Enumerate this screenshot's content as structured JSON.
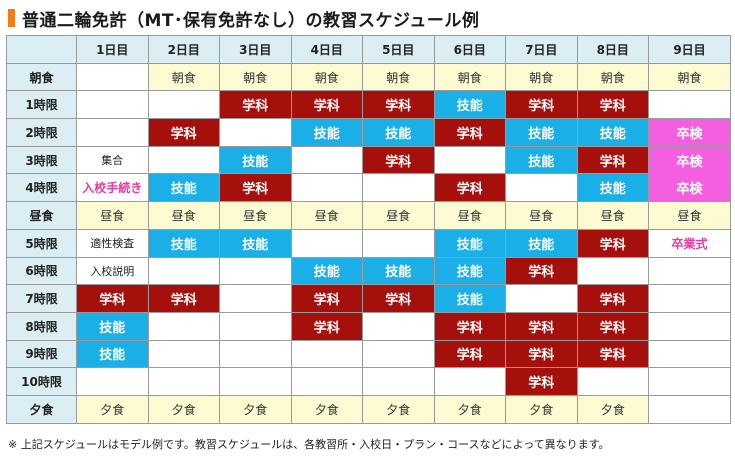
{
  "title": "普通二輪免許（MT･保有免許なし）の教習スケジュール例",
  "days": [
    "1日目",
    "2日目",
    "3日目",
    "4日目",
    "5日目",
    "6日目",
    "7日目",
    "8日目",
    "9日目"
  ],
  "rows": [
    {
      "label": "朝食",
      "cells": [
        {
          "t": "empty",
          "v": ""
        },
        {
          "t": "meal",
          "v": "朝食"
        },
        {
          "t": "meal",
          "v": "朝食"
        },
        {
          "t": "meal",
          "v": "朝食"
        },
        {
          "t": "meal",
          "v": "朝食"
        },
        {
          "t": "meal",
          "v": "朝食"
        },
        {
          "t": "meal",
          "v": "朝食"
        },
        {
          "t": "meal",
          "v": "朝食"
        },
        {
          "t": "meal",
          "v": "朝食"
        }
      ]
    },
    {
      "label": "1時限",
      "cells": [
        {
          "t": "empty",
          "v": ""
        },
        {
          "t": "empty",
          "v": ""
        },
        {
          "t": "gakka",
          "v": "学科"
        },
        {
          "t": "gakka",
          "v": "学科"
        },
        {
          "t": "gakka",
          "v": "学科"
        },
        {
          "t": "gino",
          "v": "技能"
        },
        {
          "t": "gakka",
          "v": "学科"
        },
        {
          "t": "gakka",
          "v": "学科"
        },
        {
          "t": "empty",
          "v": ""
        }
      ]
    },
    {
      "label": "2時限",
      "cells": [
        {
          "t": "empty",
          "v": ""
        },
        {
          "t": "gakka",
          "v": "学科"
        },
        {
          "t": "empty",
          "v": ""
        },
        {
          "t": "gino",
          "v": "技能"
        },
        {
          "t": "gino",
          "v": "技能"
        },
        {
          "t": "gakka",
          "v": "学科"
        },
        {
          "t": "gino",
          "v": "技能"
        },
        {
          "t": "gino",
          "v": "技能"
        },
        {
          "t": "sotsu",
          "v": "卒検"
        }
      ]
    },
    {
      "label": "3時限",
      "cells": [
        {
          "t": "plain",
          "v": "集合"
        },
        {
          "t": "empty",
          "v": ""
        },
        {
          "t": "gino",
          "v": "技能"
        },
        {
          "t": "empty",
          "v": ""
        },
        {
          "t": "gakka",
          "v": "学科"
        },
        {
          "t": "empty",
          "v": ""
        },
        {
          "t": "gino",
          "v": "技能"
        },
        {
          "t": "gakka",
          "v": "学科"
        },
        {
          "t": "sotsu",
          "v": "卒検"
        }
      ]
    },
    {
      "label": "4時限",
      "cells": [
        {
          "t": "pink",
          "v": "入校手続き"
        },
        {
          "t": "gino",
          "v": "技能"
        },
        {
          "t": "gakka",
          "v": "学科"
        },
        {
          "t": "empty",
          "v": ""
        },
        {
          "t": "empty",
          "v": ""
        },
        {
          "t": "gakka",
          "v": "学科"
        },
        {
          "t": "empty",
          "v": ""
        },
        {
          "t": "gino",
          "v": "技能"
        },
        {
          "t": "sotsu",
          "v": "卒検"
        }
      ]
    },
    {
      "label": "昼食",
      "cells": [
        {
          "t": "meal",
          "v": "昼食"
        },
        {
          "t": "meal",
          "v": "昼食"
        },
        {
          "t": "meal",
          "v": "昼食"
        },
        {
          "t": "meal",
          "v": "昼食"
        },
        {
          "t": "meal",
          "v": "昼食"
        },
        {
          "t": "meal",
          "v": "昼食"
        },
        {
          "t": "meal",
          "v": "昼食"
        },
        {
          "t": "meal",
          "v": "昼食"
        },
        {
          "t": "meal",
          "v": "昼食"
        }
      ]
    },
    {
      "label": "5時限",
      "cells": [
        {
          "t": "plain",
          "v": "適性検査"
        },
        {
          "t": "gino",
          "v": "技能"
        },
        {
          "t": "gino",
          "v": "技能"
        },
        {
          "t": "empty",
          "v": ""
        },
        {
          "t": "empty",
          "v": ""
        },
        {
          "t": "gino",
          "v": "技能"
        },
        {
          "t": "gino",
          "v": "技能"
        },
        {
          "t": "gakka",
          "v": "学科"
        },
        {
          "t": "pink",
          "v": "卒業式"
        }
      ]
    },
    {
      "label": "6時限",
      "cells": [
        {
          "t": "plain",
          "v": "入校説明"
        },
        {
          "t": "empty",
          "v": ""
        },
        {
          "t": "empty",
          "v": ""
        },
        {
          "t": "gino",
          "v": "技能"
        },
        {
          "t": "gino",
          "v": "技能"
        },
        {
          "t": "gino",
          "v": "技能"
        },
        {
          "t": "gakka",
          "v": "学科"
        },
        {
          "t": "empty",
          "v": ""
        },
        {
          "t": "empty",
          "v": ""
        }
      ]
    },
    {
      "label": "7時限",
      "cells": [
        {
          "t": "gakka",
          "v": "学科"
        },
        {
          "t": "gakka",
          "v": "学科"
        },
        {
          "t": "empty",
          "v": ""
        },
        {
          "t": "gakka",
          "v": "学科"
        },
        {
          "t": "gakka",
          "v": "学科"
        },
        {
          "t": "gino",
          "v": "技能"
        },
        {
          "t": "empty",
          "v": ""
        },
        {
          "t": "gakka",
          "v": "学科"
        },
        {
          "t": "empty",
          "v": ""
        }
      ]
    },
    {
      "label": "8時限",
      "cells": [
        {
          "t": "gino",
          "v": "技能"
        },
        {
          "t": "empty",
          "v": ""
        },
        {
          "t": "empty",
          "v": ""
        },
        {
          "t": "gakka",
          "v": "学科"
        },
        {
          "t": "empty",
          "v": ""
        },
        {
          "t": "gakka",
          "v": "学科"
        },
        {
          "t": "gakka",
          "v": "学科"
        },
        {
          "t": "gakka",
          "v": "学科"
        },
        {
          "t": "empty",
          "v": ""
        }
      ]
    },
    {
      "label": "9時限",
      "cells": [
        {
          "t": "gino",
          "v": "技能"
        },
        {
          "t": "empty",
          "v": ""
        },
        {
          "t": "empty",
          "v": ""
        },
        {
          "t": "empty",
          "v": ""
        },
        {
          "t": "empty",
          "v": ""
        },
        {
          "t": "gakka",
          "v": "学科"
        },
        {
          "t": "gakka",
          "v": "学科"
        },
        {
          "t": "gakka",
          "v": "学科"
        },
        {
          "t": "empty",
          "v": ""
        }
      ]
    },
    {
      "label": "10時限",
      "cells": [
        {
          "t": "empty",
          "v": ""
        },
        {
          "t": "empty",
          "v": ""
        },
        {
          "t": "empty",
          "v": ""
        },
        {
          "t": "empty",
          "v": ""
        },
        {
          "t": "empty",
          "v": ""
        },
        {
          "t": "empty",
          "v": ""
        },
        {
          "t": "gakka",
          "v": "学科"
        },
        {
          "t": "empty",
          "v": ""
        },
        {
          "t": "empty",
          "v": ""
        }
      ]
    },
    {
      "label": "夕食",
      "cells": [
        {
          "t": "meal",
          "v": "夕食"
        },
        {
          "t": "meal",
          "v": "夕食"
        },
        {
          "t": "meal",
          "v": "夕食"
        },
        {
          "t": "meal",
          "v": "夕食"
        },
        {
          "t": "meal",
          "v": "夕食"
        },
        {
          "t": "meal",
          "v": "夕食"
        },
        {
          "t": "meal",
          "v": "夕食"
        },
        {
          "t": "meal",
          "v": "夕食"
        },
        {
          "t": "empty",
          "v": ""
        }
      ]
    }
  ],
  "note": "※ 上記スケジュールはモデル例です。教習スケジュールは、各教習所・入校日・プラン・コースなどによって異なります。",
  "colors": {
    "accent": "#f07c1c",
    "header_bg": "#daeef3",
    "meal_bg": "#fdfbd2",
    "gakka": "#a50f0c",
    "gino": "#1aafe6",
    "sotsuken": "#f45fe2",
    "pink_text": "#e83aa2"
  }
}
